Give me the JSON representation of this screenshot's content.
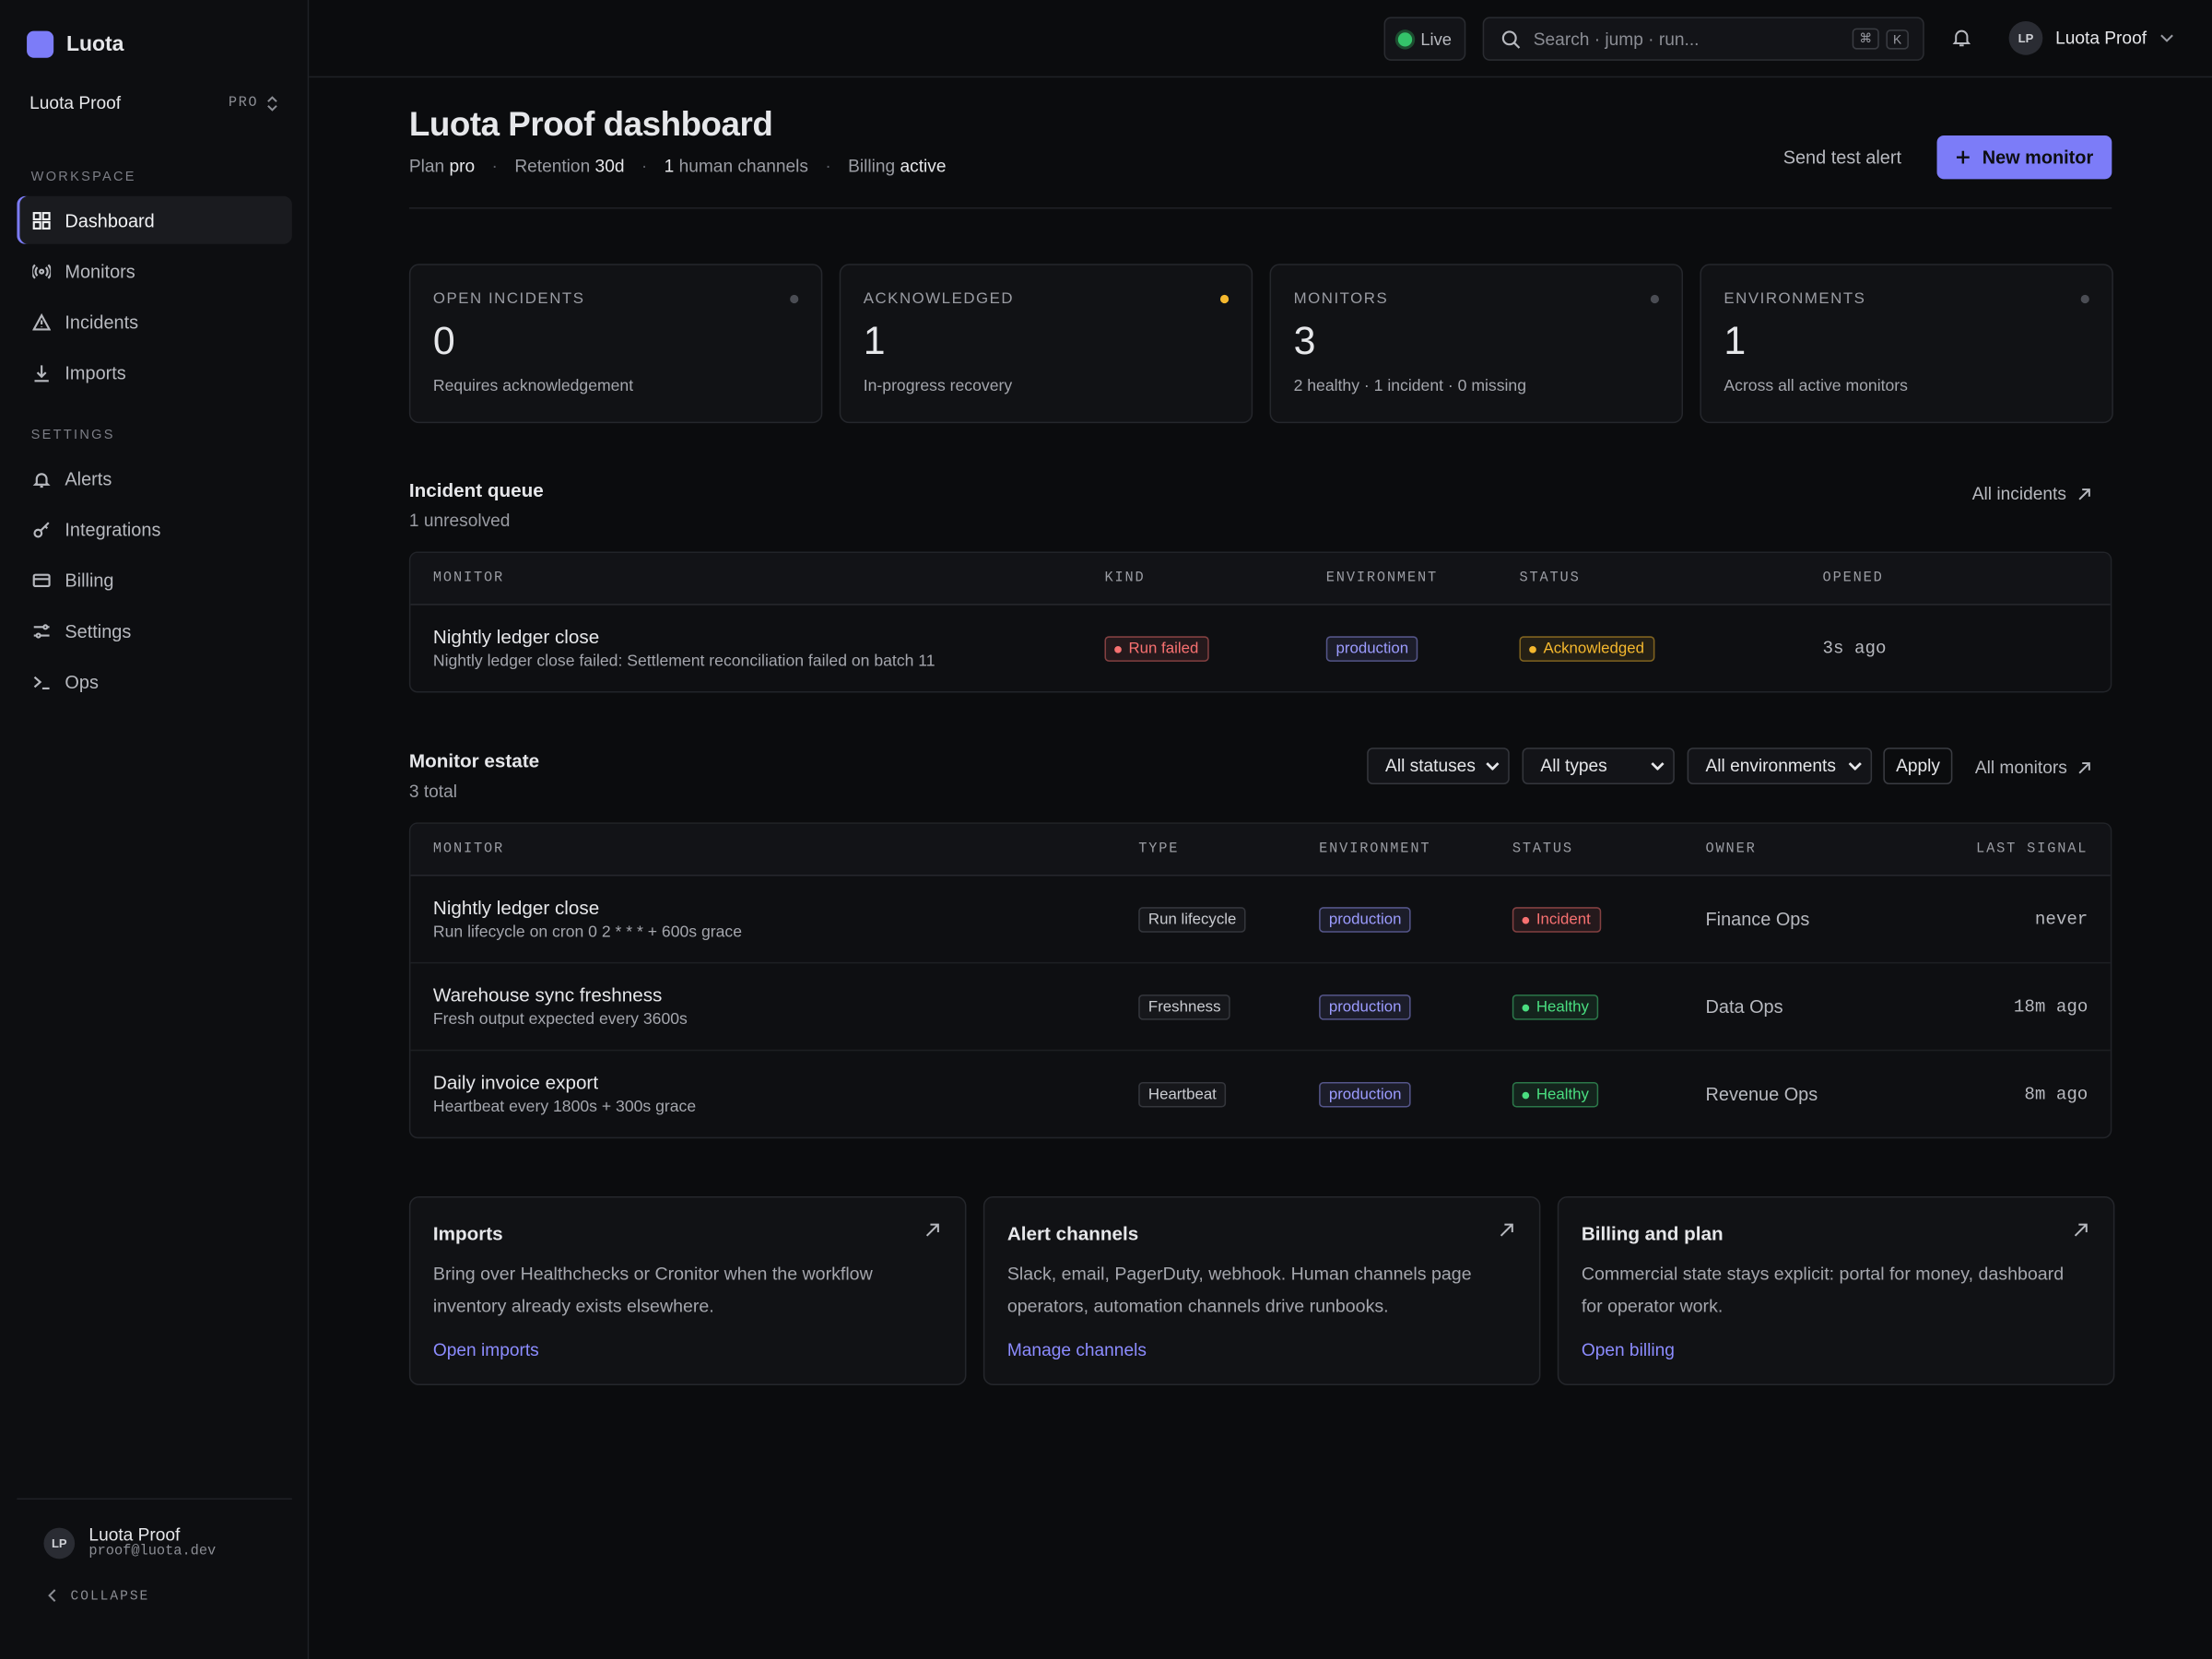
{
  "sidebar": {
    "brand": "Luota",
    "workspace": {
      "name": "Luota Proof",
      "plan": "PRO"
    },
    "sections": [
      {
        "title": "WORKSPACE",
        "items": [
          "Dashboard",
          "Monitors",
          "Incidents",
          "Imports"
        ]
      },
      {
        "title": "SETTINGS",
        "items": [
          "Alerts",
          "Integrations",
          "Billing",
          "Settings",
          "Ops"
        ]
      }
    ],
    "user": {
      "initials": "LP",
      "name": "Luota Proof",
      "email": "proof@luota.dev"
    },
    "collapse": "COLLAPSE"
  },
  "topbar": {
    "status": "Live",
    "search": "Search · jump · run...",
    "shortcut": [
      "⌘",
      "K"
    ],
    "user": {
      "initials": "LP",
      "name": "Luota Proof"
    }
  },
  "header": {
    "title": "Luota Proof dashboard",
    "meta": [
      {
        "label": "Plan",
        "value": "pro"
      },
      {
        "label": "Retention",
        "value": "30d"
      },
      {
        "value": "1",
        "label": "human channels"
      },
      {
        "label": "Billing",
        "value": "active"
      }
    ],
    "actions": {
      "secondary": "Send test alert",
      "primary": "New monitor"
    }
  },
  "stats": [
    {
      "title": "OPEN INCIDENTS",
      "value": 0,
      "note": "Requires acknowledgement",
      "dot": "#4a4c53"
    },
    {
      "title": "ACKNOWLEDGED",
      "value": 1,
      "note": "In-progress recovery",
      "dot": "#f5b82e"
    },
    {
      "title": "MONITORS",
      "value": 3,
      "note": "2 healthy · 1 incident · 0 missing",
      "dot": "#4a4c53"
    },
    {
      "title": "ENVIRONMENTS",
      "value": 1,
      "note": "Across all active monitors",
      "dot": "#4a4c53"
    }
  ],
  "incidents": {
    "title": "Incident queue",
    "subtitle": "1 unresolved",
    "link": "All incidents",
    "columns": [
      "MONITOR",
      "KIND",
      "ENVIRONMENT",
      "STATUS",
      "OPENED"
    ],
    "rows": [
      {
        "monitor": "Nightly ledger close",
        "detail": "Nightly ledger close failed: Settlement reconciliation failed on batch 11",
        "kind": "Run failed",
        "kind_color": "#f87171",
        "environment": "production",
        "status": "Acknowledged",
        "status_color": "#f5b82e",
        "opened": "3s ago"
      }
    ]
  },
  "monitors": {
    "title": "Monitor estate",
    "subtitle": "3 total",
    "filters": [
      "All statuses",
      "All types",
      "All environments"
    ],
    "apply": "Apply",
    "link": "All monitors",
    "columns": [
      "MONITOR",
      "TYPE",
      "ENVIRONMENT",
      "STATUS",
      "OWNER",
      "LAST SIGNAL"
    ],
    "rows": [
      {
        "name": "Nightly ledger close",
        "detail": "Run lifecycle on cron 0 2 * * * + 600s grace",
        "type": "Run lifecycle",
        "environment": "production",
        "status": "Incident",
        "status_color": "#f87171",
        "owner": "Finance Ops",
        "last_signal": "never"
      },
      {
        "name": "Warehouse sync freshness",
        "detail": "Fresh output expected every 3600s",
        "type": "Freshness",
        "environment": "production",
        "status": "Healthy",
        "status_color": "#4ade80",
        "owner": "Data Ops",
        "last_signal": "18m ago"
      },
      {
        "name": "Daily invoice export",
        "detail": "Heartbeat every 1800s + 300s grace",
        "type": "Heartbeat",
        "environment": "production",
        "status": "Healthy",
        "status_color": "#4ade80",
        "owner": "Revenue Ops",
        "last_signal": "8m ago"
      }
    ]
  },
  "cards": [
    {
      "title": "Imports",
      "text": "Bring over Healthchecks or Cronitor when the workflow inventory already exists elsewhere.",
      "link": "Open imports"
    },
    {
      "title": "Alert channels",
      "text": "Slack, email, PagerDuty, webhook. Human channels page operators, automation channels drive runbooks.",
      "link": "Manage channels"
    },
    {
      "title": "Billing and plan",
      "text": "Commercial state stays explicit: portal for money, dashboard for operator work.",
      "link": "Open billing"
    }
  ]
}
